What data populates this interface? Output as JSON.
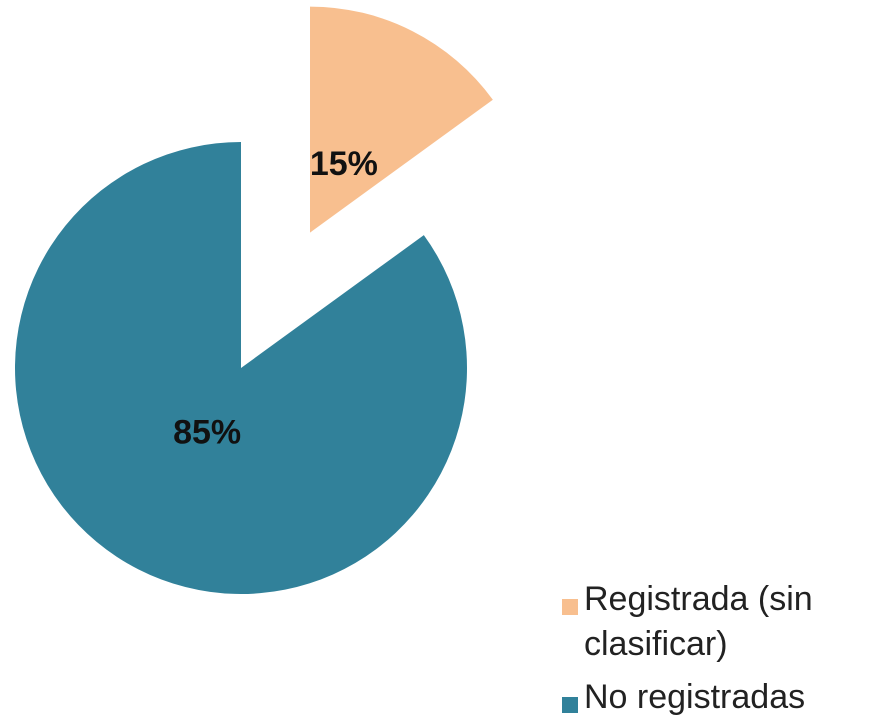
{
  "chart_data": {
    "type": "pie",
    "categories": [
      "Registrada (sin clasificar)",
      "No registradas"
    ],
    "values": [
      15,
      85
    ],
    "value_labels": [
      "15%",
      "85%"
    ],
    "colors": [
      "#f8bf8f",
      "#31819a"
    ]
  }
}
